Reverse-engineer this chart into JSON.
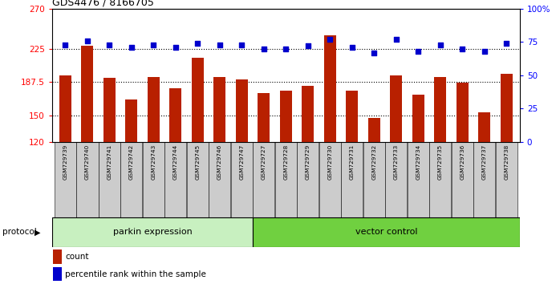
{
  "title": "GDS4476 / 8166705",
  "samples": [
    "GSM729739",
    "GSM729740",
    "GSM729741",
    "GSM729742",
    "GSM729743",
    "GSM729744",
    "GSM729745",
    "GSM729746",
    "GSM729747",
    "GSM729727",
    "GSM729728",
    "GSM729729",
    "GSM729730",
    "GSM729731",
    "GSM729732",
    "GSM729733",
    "GSM729734",
    "GSM729735",
    "GSM729736",
    "GSM729737",
    "GSM729738"
  ],
  "counts": [
    195,
    228,
    192,
    168,
    193,
    180,
    215,
    193,
    190,
    175,
    178,
    183,
    240,
    178,
    147,
    195,
    173,
    193,
    187,
    153,
    197
  ],
  "percentiles": [
    73,
    76,
    73,
    71,
    73,
    71,
    74,
    73,
    73,
    70,
    70,
    72,
    77,
    71,
    67,
    77,
    68,
    73,
    70,
    68,
    74
  ],
  "group1_label": "parkin expression",
  "group2_label": "vector control",
  "group1_count": 9,
  "group2_count": 12,
  "protocol_label": "protocol",
  "ylim_left": [
    120,
    270
  ],
  "ylim_right": [
    0,
    100
  ],
  "yticks_left": [
    120,
    150,
    187.5,
    225,
    270
  ],
  "yticks_right": [
    0,
    25,
    50,
    75,
    100
  ],
  "yticklabels_left": [
    "120",
    "150",
    "187.5",
    "225",
    "270"
  ],
  "yticklabels_right": [
    "0",
    "25",
    "50",
    "75",
    "100%"
  ],
  "bar_color": "#b82000",
  "dot_color": "#0000cc",
  "group1_bg": "#c8f0c0",
  "group2_bg": "#70d040",
  "legend_count_label": "count",
  "legend_pct_label": "percentile rank within the sample",
  "tick_label_bg": "#cccccc",
  "dotted_lines": [
    150,
    187.5,
    225
  ],
  "figsize": [
    6.98,
    3.54
  ],
  "dpi": 100
}
